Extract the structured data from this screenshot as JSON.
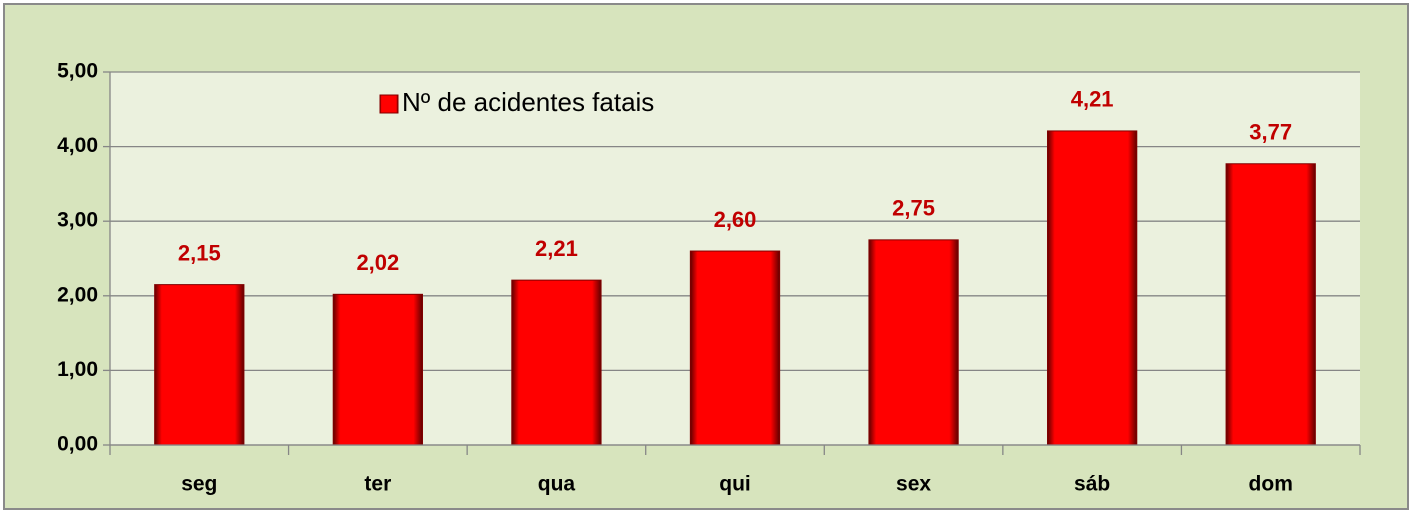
{
  "chart_data": {
    "type": "bar",
    "categories": [
      "seg",
      "ter",
      "qua",
      "qui",
      "sex",
      "sáb",
      "dom"
    ],
    "series": [
      {
        "name": "Nº de acidentes fatais",
        "color": "#ff0000",
        "values": [
          2.15,
          2.02,
          2.21,
          2.6,
          2.75,
          4.21,
          3.77
        ],
        "value_labels": [
          "2,15",
          "2,02",
          "2,21",
          "2,60",
          "2,75",
          "4,21",
          "3,77"
        ]
      }
    ],
    "ylim": [
      0,
      5
    ],
    "yticks": [
      {
        "value": 0,
        "label": "0,00"
      },
      {
        "value": 1,
        "label": "1,00"
      },
      {
        "value": 2,
        "label": "2,00"
      },
      {
        "value": 3,
        "label": "3,00"
      },
      {
        "value": 4,
        "label": "4,00"
      },
      {
        "value": 5,
        "label": "5,00"
      }
    ],
    "grid": true,
    "legend": "top-left"
  }
}
